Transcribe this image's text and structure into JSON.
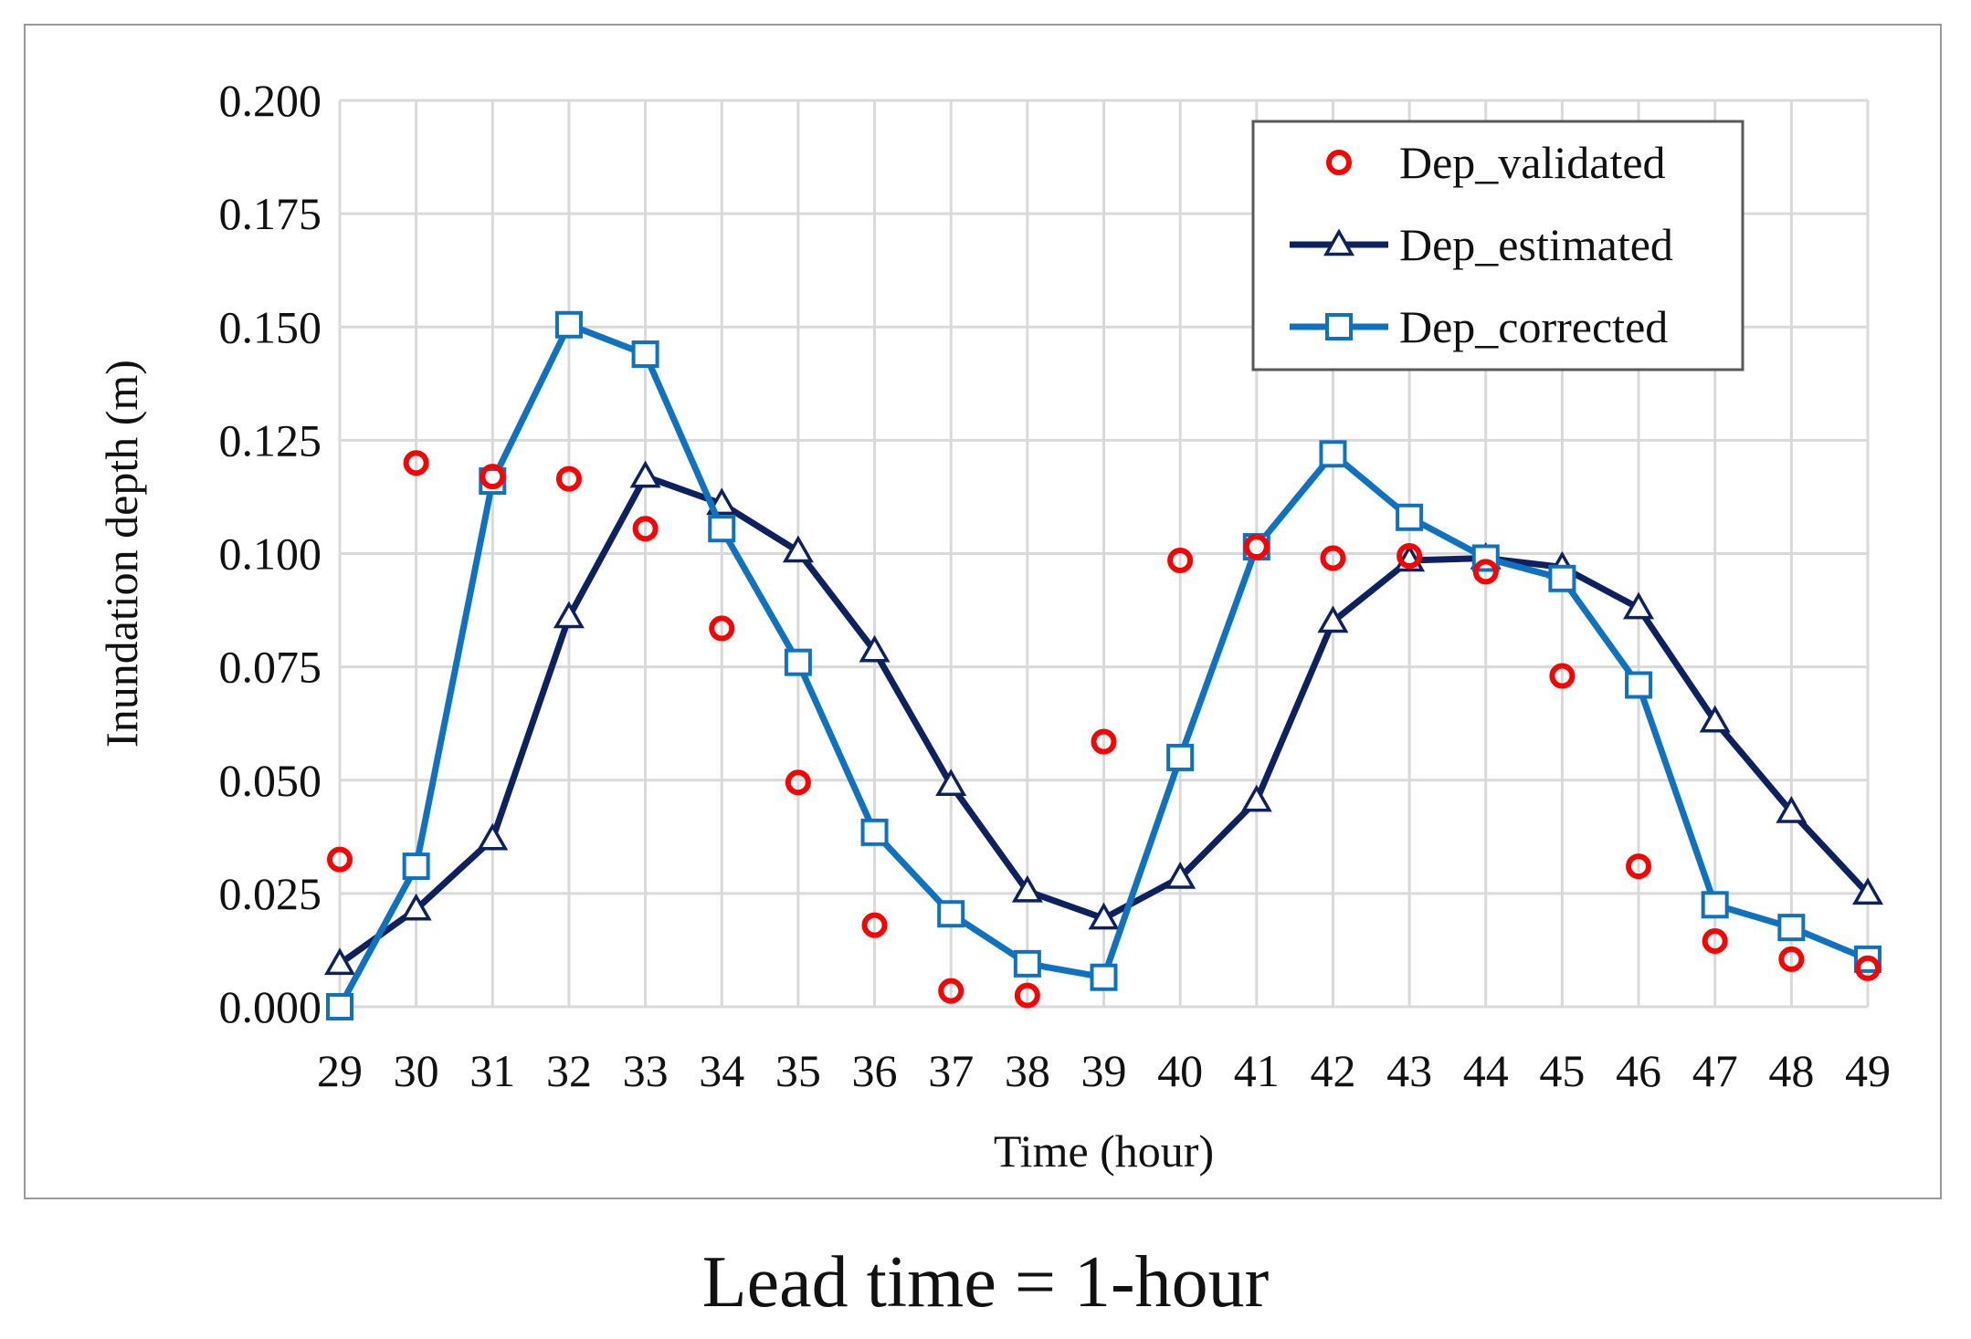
{
  "chart_data": {
    "type": "line",
    "title": "",
    "xlabel": "Time (hour)",
    "ylabel": "Inundation depth (m)",
    "x": [
      29,
      30,
      31,
      32,
      33,
      34,
      35,
      36,
      37,
      38,
      39,
      40,
      41,
      42,
      43,
      44,
      45,
      46,
      47,
      48,
      49
    ],
    "x_tick_labels": [
      "29",
      "30",
      "31",
      "32",
      "33",
      "34",
      "35",
      "36",
      "37",
      "38",
      "39",
      "40",
      "41",
      "42",
      "43",
      "44",
      "45",
      "46",
      "47",
      "48",
      "49"
    ],
    "ylim": [
      0,
      0.2
    ],
    "y_ticks": [
      0,
      0.025,
      0.05,
      0.075,
      0.1,
      0.125,
      0.15,
      0.175,
      0.2
    ],
    "y_tick_labels": [
      "0.000",
      "0.025",
      "0.050",
      "0.075",
      "0.100",
      "0.125",
      "0.150",
      "0.175",
      "0.200"
    ],
    "grid": true,
    "legend_position": "top-right",
    "series": [
      {
        "name": "Dep_validated",
        "style": "markers",
        "marker": "circle",
        "color": "#ff0000",
        "values": [
          0.0325,
          0.12,
          0.117,
          0.1165,
          0.1055,
          0.0835,
          0.0495,
          0.018,
          0.0035,
          0.0025,
          0.0585,
          0.0985,
          0.1015,
          0.099,
          0.0995,
          0.096,
          0.073,
          0.031,
          0.0145,
          0.0105,
          0.0085
        ]
      },
      {
        "name": "Dep_estimated",
        "style": "line",
        "marker": "triangle",
        "color": "#0d2160",
        "values": [
          0.0095,
          0.0215,
          0.037,
          0.086,
          0.117,
          0.111,
          0.1005,
          0.0785,
          0.049,
          0.0255,
          0.0195,
          0.0285,
          0.0455,
          0.085,
          0.0985,
          0.099,
          0.097,
          0.088,
          0.063,
          0.043,
          0.025
        ]
      },
      {
        "name": "Dep_corrected",
        "style": "line",
        "marker": "square",
        "color": "#0f72c0",
        "values": [
          0.0,
          0.031,
          0.116,
          0.1505,
          0.144,
          0.1055,
          0.076,
          0.0385,
          0.0205,
          0.0095,
          0.0065,
          0.055,
          0.1015,
          0.122,
          0.108,
          0.099,
          0.0945,
          0.071,
          0.0225,
          0.0175,
          0.0105
        ]
      }
    ]
  },
  "caption": "Lead time = 1-hour"
}
